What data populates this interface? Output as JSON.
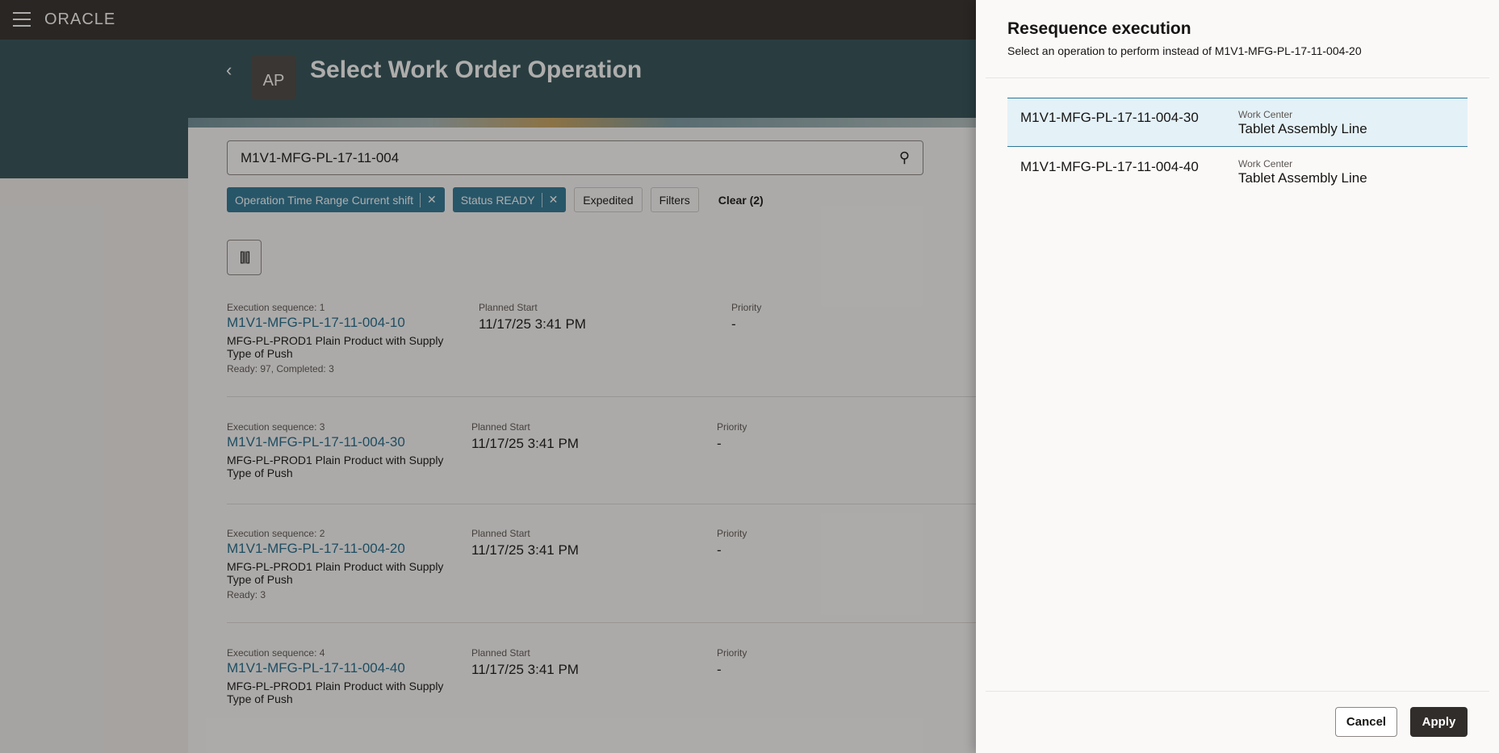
{
  "app": {
    "logo": "ORACLE",
    "title": "Select Work Order Operation",
    "avatar": "AP"
  },
  "search": {
    "value": "M1V1-MFG-PL-17-11-004"
  },
  "filters": {
    "chip1": "Operation Time Range Current shift",
    "chip2": "Status READY",
    "expedited": "Expedited",
    "filters": "Filters",
    "clear": "Clear (2)"
  },
  "columns": {
    "planned_start": "Planned Start",
    "priority": "Priority"
  },
  "operations": [
    {
      "seq": "Execution sequence: 1",
      "id": "M1V1-MFG-PL-17-11-004-10",
      "desc": "MFG-PL-PROD1 Plain Product with Supply Type of Push",
      "qty": "Ready: 97, Completed: 3",
      "start": "11/17/25 3:41 PM",
      "priority": "-"
    },
    {
      "seq": "Execution sequence: 3",
      "id": "M1V1-MFG-PL-17-11-004-30",
      "desc": "MFG-PL-PROD1 Plain Product with Supply Type of Push",
      "qty": "",
      "start": "11/17/25 3:41 PM",
      "priority": "-"
    },
    {
      "seq": "Execution sequence: 2",
      "id": "M1V1-MFG-PL-17-11-004-20",
      "desc": "MFG-PL-PROD1 Plain Product with Supply Type of Push",
      "qty": "Ready: 3",
      "start": "11/17/25 3:41 PM",
      "priority": "-"
    },
    {
      "seq": "Execution sequence: 4",
      "id": "M1V1-MFG-PL-17-11-004-40",
      "desc": "MFG-PL-PROD1 Plain Product with Supply Type of Push",
      "qty": "",
      "start": "11/17/25 3:41 PM",
      "priority": "-"
    }
  ],
  "panel": {
    "title": "Resequence execution",
    "subtitle": "Select an operation to perform instead of M1V1-MFG-PL-17-11-004-20",
    "options": [
      {
        "id": "M1V1-MFG-PL-17-11-004-30",
        "wc_label": "Work Center",
        "wc": "Tablet Assembly Line",
        "selected": true
      },
      {
        "id": "M1V1-MFG-PL-17-11-004-40",
        "wc_label": "Work Center",
        "wc": "Tablet Assembly Line",
        "selected": false
      }
    ],
    "cancel": "Cancel",
    "apply": "Apply"
  },
  "colors": {
    "accent": "#2c7896",
    "header": "#2f5157",
    "topbar": "#312d2a"
  }
}
